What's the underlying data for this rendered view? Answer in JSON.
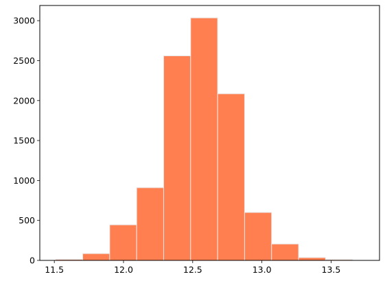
{
  "chart_data": {
    "type": "bar",
    "title": "",
    "xlabel": "",
    "ylabel": "",
    "bin_edges": [
      11.51,
      11.705,
      11.9,
      12.095,
      12.29,
      12.485,
      12.68,
      12.875,
      13.07,
      13.265,
      13.46,
      13.655,
      13.85
    ],
    "values": [
      12,
      85,
      445,
      910,
      2560,
      3035,
      2085,
      600,
      205,
      35,
      10,
      0
    ],
    "xlim": [
      11.395,
      13.85
    ],
    "ylim": [
      0,
      3190
    ],
    "xticks": [
      {
        "value": 11.5,
        "label": "11.5"
      },
      {
        "value": 12.0,
        "label": "12.0"
      },
      {
        "value": 12.5,
        "label": "12.5"
      },
      {
        "value": 13.0,
        "label": "13.0"
      },
      {
        "value": 13.5,
        "label": "13.5"
      }
    ],
    "yticks": [
      {
        "value": 0,
        "label": "0"
      },
      {
        "value": 500,
        "label": "500"
      },
      {
        "value": 1000,
        "label": "1000"
      },
      {
        "value": 1500,
        "label": "1500"
      },
      {
        "value": 2000,
        "label": "2000"
      },
      {
        "value": 2500,
        "label": "2500"
      },
      {
        "value": 3000,
        "label": "3000"
      }
    ],
    "grid": false,
    "legend": "none",
    "bar_color": "#ff7f50",
    "bar_edge_color": "#e8e8e8"
  }
}
